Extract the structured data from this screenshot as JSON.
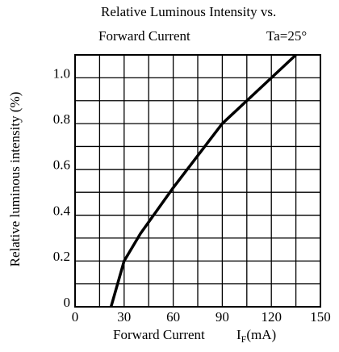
{
  "chart_data": {
    "type": "line",
    "title": "Relative Luminous Intensity  vs.",
    "subtitle": "Forward Current",
    "annotation": "Ta=25°",
    "y_label": "Relative luminous intensity (%)",
    "x_label": "Forward Current",
    "x_unit": {
      "symbol": "I",
      "subscript": "F",
      "unit": "(mA)"
    },
    "x": [
      22,
      30,
      40,
      50,
      60,
      75,
      90,
      105,
      120,
      135
    ],
    "series": [
      {
        "name": "Relative luminous intensity",
        "color": "#000000",
        "values": [
          0,
          0.2,
          0.32,
          0.42,
          0.52,
          0.66,
          0.8,
          0.9,
          1.0,
          1.1
        ]
      }
    ],
    "xlim": [
      0,
      150
    ],
    "xticks": [
      0,
      30,
      60,
      90,
      120,
      150
    ],
    "ylim": [
      0,
      1.1
    ],
    "yticks": [
      0,
      0.2,
      0.4,
      0.6,
      0.8,
      {
        "value": 1,
        "label": "1.0"
      }
    ],
    "grid": true
  }
}
